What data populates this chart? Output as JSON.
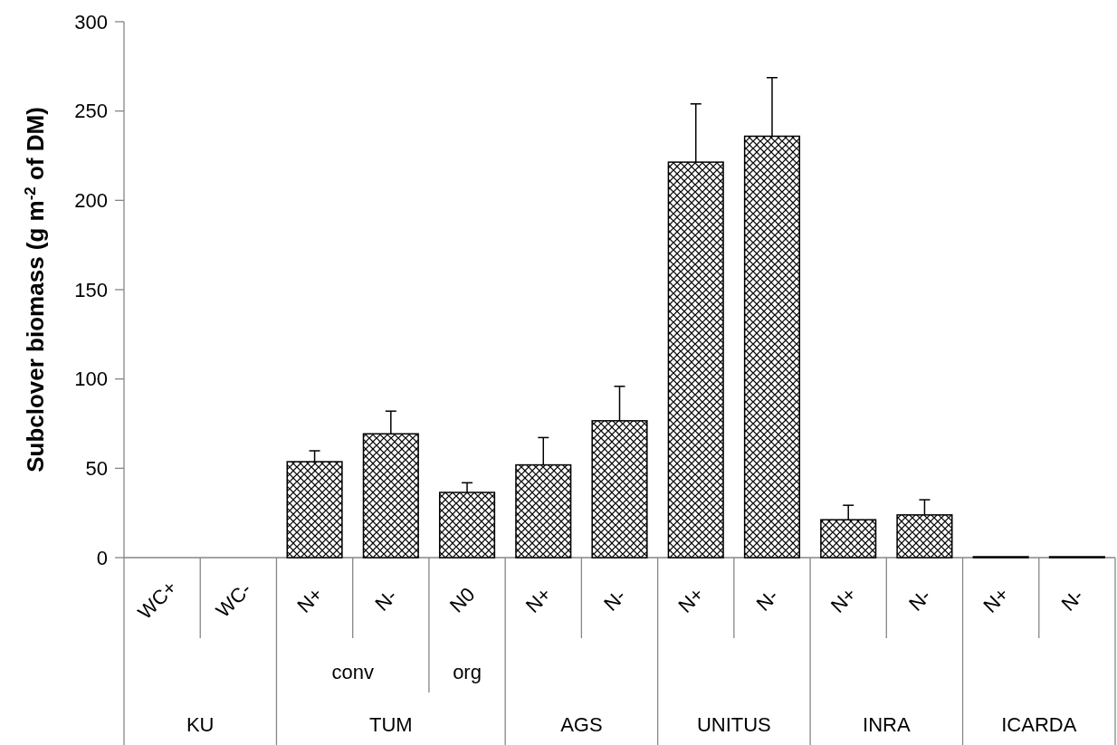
{
  "chart_data": {
    "type": "bar",
    "ylabel": "Subclover biomass (g m$^{-2}$ of DM)",
    "categories": [
      "WC+",
      "WC-",
      "N+",
      "N-",
      "N0",
      "N+",
      "N-",
      "N+",
      "N-",
      "N+",
      "N-",
      "N+",
      "N-"
    ],
    "values": [
      0,
      0,
      53.7,
      69.3,
      36.5,
      51.9,
      76.6,
      221.4,
      235.9,
      21.2,
      23.9,
      0.5,
      0.5
    ],
    "errors": [
      null,
      null,
      [
        53.7,
        59.8
      ],
      [
        69.3,
        82
      ],
      [
        36.5,
        41.9
      ],
      [
        51.9,
        67.2
      ],
      [
        76.6,
        95.9
      ],
      [
        221.4,
        254
      ],
      [
        235.9,
        268.7
      ],
      [
        21.2,
        29.3
      ],
      [
        23.9,
        32.4
      ],
      null,
      null
    ],
    "color": "#000000",
    "ylim": [
      0,
      300
    ],
    "yticks": [
      0,
      50,
      100,
      150,
      200,
      250,
      300
    ],
    "grid": false,
    "annotations": [
      "conv",
      "org",
      "KU",
      "TUM",
      "AGS",
      "UNITUS",
      "INRA",
      "ICARDA"
    ]
  }
}
